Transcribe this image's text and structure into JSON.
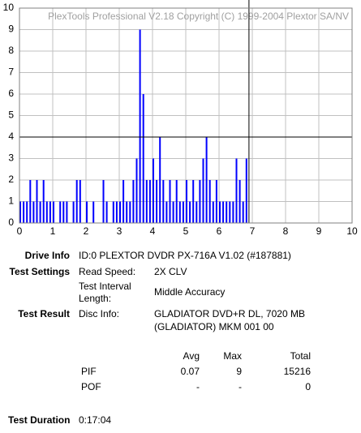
{
  "chart_data": {
    "type": "bar",
    "title": "PlexTools Professional V2.18 Copyright (C) 1999-2004 Plextor SA/NV",
    "x": [
      0.0,
      0.1,
      0.2,
      0.3,
      0.4,
      0.5,
      0.6,
      0.7,
      0.8,
      0.9,
      1.0,
      1.1,
      1.2,
      1.3,
      1.4,
      1.5,
      1.6,
      1.7,
      1.8,
      1.9,
      2.0,
      2.1,
      2.2,
      2.3,
      2.4,
      2.5,
      2.6,
      2.7,
      2.8,
      2.9,
      3.0,
      3.1,
      3.2,
      3.3,
      3.4,
      3.5,
      3.6,
      3.7,
      3.8,
      3.9,
      4.0,
      4.1,
      4.2,
      4.3,
      4.4,
      4.5,
      4.6,
      4.7,
      4.8,
      4.9,
      5.0,
      5.1,
      5.2,
      5.3,
      5.4,
      5.5,
      5.6,
      5.7,
      5.8,
      5.9,
      6.0,
      6.1,
      6.2,
      6.3,
      6.4,
      6.5,
      6.6,
      6.7,
      6.8
    ],
    "values": [
      1,
      1,
      1,
      2,
      1,
      2,
      1,
      2,
      1,
      1,
      1,
      0,
      1,
      1,
      1,
      0,
      1,
      2,
      2,
      0,
      1,
      0,
      1,
      0,
      0,
      2,
      1,
      0,
      1,
      1,
      1,
      2,
      1,
      1,
      2,
      3,
      9,
      6,
      2,
      2,
      3,
      2,
      4,
      2,
      1,
      2,
      1,
      2,
      1,
      1,
      2,
      1,
      2,
      1,
      2,
      3,
      4,
      2,
      1,
      2,
      1,
      1,
      1,
      1,
      1,
      3,
      2,
      1,
      3
    ],
    "color": "#0000ff",
    "xlim": [
      0,
      10
    ],
    "xticks": [
      0,
      1,
      2,
      3,
      4,
      5,
      6,
      7,
      8,
      9,
      10
    ],
    "ylim": [
      0,
      10
    ],
    "yticks": [
      0,
      1,
      2,
      3,
      4,
      5,
      6,
      7,
      8,
      9,
      10
    ],
    "grid": true,
    "threshold_y": 4,
    "marker_x": 6.9
  },
  "info": {
    "drive_info": {
      "label": "Drive Info",
      "value": "ID:0 PLEXTOR DVDR PX-716A V1.02 (#187881)"
    },
    "test_settings": {
      "label": "Test Settings",
      "read_speed_label": "Read Speed:",
      "read_speed": "2X CLV",
      "interval_label_1": "Test Interval",
      "interval_label_2": "Length:",
      "interval": "Middle Accuracy"
    },
    "test_result": {
      "label": "Test Result",
      "disc_info_label": "Disc Info:",
      "disc_1": "GLADIATOR DVD+R DL, 7020 MB",
      "disc_2": "(GLADIATOR) MKM 001 00"
    },
    "table": {
      "header": [
        "Avg",
        "Max",
        "Total"
      ],
      "rows": [
        [
          "PIF",
          "0.07",
          "9",
          "15216"
        ],
        [
          "POF",
          "-",
          "-",
          "0"
        ]
      ]
    },
    "duration": {
      "label": "Test Duration",
      "value": "0:17:04"
    }
  }
}
